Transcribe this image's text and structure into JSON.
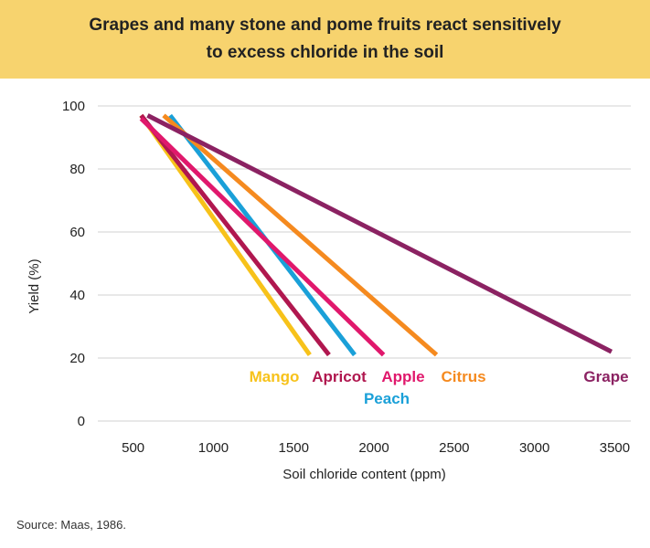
{
  "header": {
    "title": "Grapes and many stone and pome fruits react sensitively\nto excess chloride in the soil"
  },
  "chart_data": {
    "type": "line",
    "title": "Grapes and many stone and pome fruits react sensitively to excess chloride in the soil",
    "xlabel": "Soil chloride content (ppm)",
    "ylabel": "Yield (%)",
    "xlim": [
      280,
      3600
    ],
    "ylim": [
      0,
      100
    ],
    "x_ticks": [
      500,
      1000,
      1500,
      2000,
      2500,
      3000,
      3500
    ],
    "y_ticks": [
      0,
      20,
      40,
      60,
      80,
      100
    ],
    "grid": "horizontal",
    "legend": "inline labels below lines",
    "series": [
      {
        "name": "Mango",
        "color": "#f7c21a",
        "x": [
          550,
          1600
        ],
        "y": [
          97,
          21
        ]
      },
      {
        "name": "Apricot",
        "color": "#b0174f",
        "x": [
          550,
          1720
        ],
        "y": [
          97,
          21
        ]
      },
      {
        "name": "Peach",
        "color": "#1aa0d8",
        "x": [
          730,
          1880
        ],
        "y": [
          97,
          21
        ]
      },
      {
        "name": "Apple",
        "color": "#e0186c",
        "x": [
          550,
          2060
        ],
        "y": [
          96,
          21
        ]
      },
      {
        "name": "Citrus",
        "color": "#f58a1f",
        "x": [
          690,
          2390
        ],
        "y": [
          97,
          21
        ]
      },
      {
        "name": "Grape",
        "color": "#8b2262",
        "x": [
          590,
          3480
        ],
        "y": [
          97,
          22
        ]
      }
    ]
  },
  "footer": {
    "source": "Source: Maas, 1986."
  }
}
